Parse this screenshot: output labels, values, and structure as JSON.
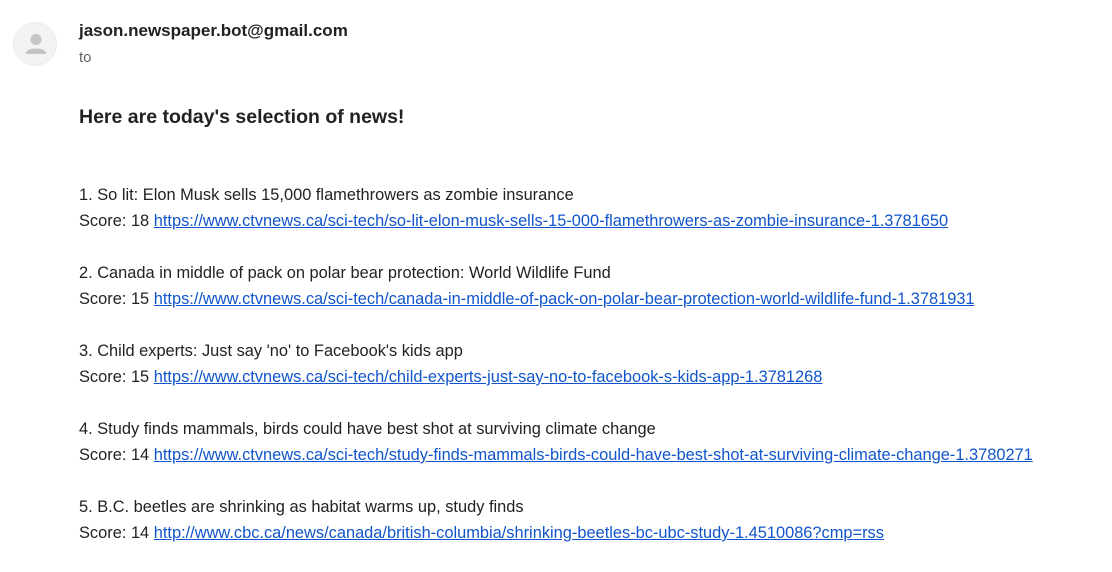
{
  "sender": {
    "email": "jason.newspaper.bot@gmail.com",
    "to_label": "to"
  },
  "message": {
    "heading": "Here are today's selection of news!",
    "score_prefix": "Score:",
    "items": [
      {
        "title": "1. So lit: Elon Musk sells 15,000 flamethrowers as zombie insurance",
        "score": "18",
        "url": "https://www.ctvnews.ca/sci-tech/so-lit-elon-musk-sells-15-000-flamethrowers-as-zombie-insurance-1.3781650"
      },
      {
        "title": "2. Canada in middle of pack on polar bear protection: World Wildlife Fund",
        "score": "15",
        "url": "https://www.ctvnews.ca/sci-tech/canada-in-middle-of-pack-on-polar-bear-protection-world-wildlife-fund-1.3781931"
      },
      {
        "title": "3. Child experts: Just say 'no' to Facebook's kids app",
        "score": "15",
        "url": "https://www.ctvnews.ca/sci-tech/child-experts-just-say-no-to-facebook-s-kids-app-1.3781268"
      },
      {
        "title": "4. Study finds mammals, birds could have best shot at surviving climate change",
        "score": "14",
        "url": "https://www.ctvnews.ca/sci-tech/study-finds-mammals-birds-could-have-best-shot-at-surviving-climate-change-1.3780271"
      },
      {
        "title": "5. B.C. beetles are shrinking as habitat warms up, study finds",
        "score": "14",
        "url": "http://www.cbc.ca/news/canada/british-columbia/shrinking-beetles-bc-ubc-study-1.4510086?cmp=rss"
      }
    ]
  },
  "colors": {
    "link": "#1155cc",
    "text": "#222222",
    "muted": "#5f6368"
  }
}
